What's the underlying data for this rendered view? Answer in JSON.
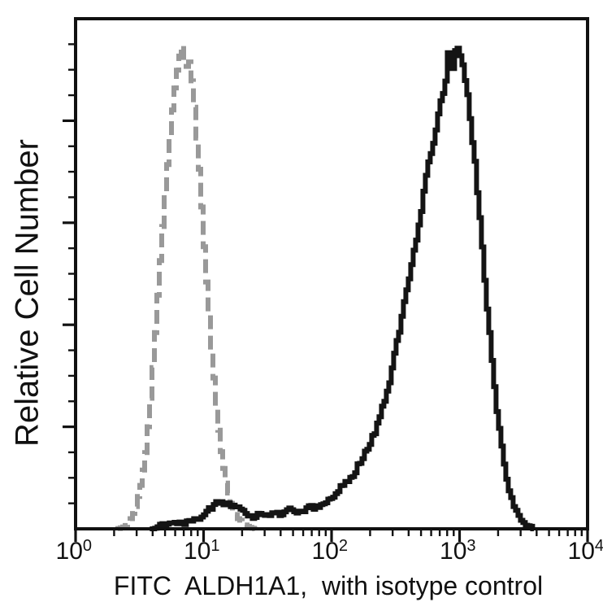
{
  "figure": {
    "background": "#ffffff",
    "axis_color": "#111111"
  },
  "chart_data": {
    "type": "line",
    "subtype": "flow-cytometry-overlay-histogram",
    "title": "",
    "xlabel": "FITC  ALDH1A1,  with isotype control",
    "ylabel": "Relative Cell Number",
    "grid": false,
    "legend": "none",
    "x_axis": {
      "scale": "log10",
      "range_log": [
        0,
        4
      ],
      "ticks": [
        {
          "base": "10",
          "exponent": "0",
          "log": 0
        },
        {
          "base": "10",
          "exponent": "1",
          "log": 1
        },
        {
          "base": "10",
          "exponent": "2",
          "log": 2
        },
        {
          "base": "10",
          "exponent": "3",
          "log": 3
        },
        {
          "base": "10",
          "exponent": "4",
          "log": 4
        }
      ],
      "minor_ticks": "log-decade-2-to-9"
    },
    "y_axis": {
      "scale": "linear",
      "tick_labels": "none",
      "minor_divisions": 20,
      "major_every": 4,
      "range_relative": [
        0,
        100
      ]
    },
    "series": [
      {
        "name": "isotype control",
        "line_style": "dashed",
        "color": "#999999",
        "peak_log_x": 0.84,
        "peak_relative_height": 95,
        "points": [
          [
            0.33,
            0
          ],
          [
            0.38,
            0.5
          ],
          [
            0.42,
            1.5
          ],
          [
            0.46,
            4
          ],
          [
            0.5,
            8
          ],
          [
            0.54,
            15
          ],
          [
            0.58,
            26
          ],
          [
            0.62,
            40
          ],
          [
            0.66,
            55
          ],
          [
            0.7,
            68
          ],
          [
            0.74,
            80
          ],
          [
            0.78,
            89
          ],
          [
            0.8,
            92
          ],
          [
            0.83,
            95
          ],
          [
            0.855,
            89
          ],
          [
            0.875,
            93
          ],
          [
            0.9,
            88
          ],
          [
            0.93,
            80
          ],
          [
            0.96,
            70
          ],
          [
            1.0,
            54
          ],
          [
            1.04,
            40
          ],
          [
            1.08,
            27
          ],
          [
            1.12,
            17
          ],
          [
            1.16,
            10
          ],
          [
            1.2,
            5.5
          ],
          [
            1.25,
            2.5
          ],
          [
            1.3,
            1
          ],
          [
            1.36,
            0.3
          ],
          [
            1.4,
            0
          ]
        ]
      },
      {
        "name": "ALDH1A1",
        "line_style": "solid",
        "color": "#141414",
        "peak_log_x": 2.97,
        "peak_relative_height": 95,
        "points": [
          [
            0.58,
            0
          ],
          [
            0.62,
            0.6
          ],
          [
            0.68,
            1.0
          ],
          [
            0.75,
            1.2
          ],
          [
            0.82,
            1.5
          ],
          [
            0.9,
            2.2
          ],
          [
            0.96,
            3.0
          ],
          [
            1.02,
            4.2
          ],
          [
            1.08,
            5.2
          ],
          [
            1.14,
            5.8
          ],
          [
            1.2,
            5.0
          ],
          [
            1.26,
            4.0
          ],
          [
            1.32,
            3.0
          ],
          [
            1.4,
            2.6
          ],
          [
            1.5,
            2.8
          ],
          [
            1.6,
            3.0
          ],
          [
            1.7,
            3.4
          ],
          [
            1.8,
            3.8
          ],
          [
            1.9,
            4.4
          ],
          [
            2.0,
            6.0
          ],
          [
            2.08,
            8.0
          ],
          [
            2.16,
            10.5
          ],
          [
            2.24,
            13.5
          ],
          [
            2.3,
            17
          ],
          [
            2.36,
            21
          ],
          [
            2.42,
            26
          ],
          [
            2.48,
            33
          ],
          [
            2.54,
            41
          ],
          [
            2.6,
            50
          ],
          [
            2.66,
            58
          ],
          [
            2.72,
            67
          ],
          [
            2.78,
            75
          ],
          [
            2.84,
            83
          ],
          [
            2.88,
            87
          ],
          [
            2.91,
            94
          ],
          [
            2.94,
            90
          ],
          [
            2.97,
            95
          ],
          [
            3.0,
            92
          ],
          [
            3.03,
            89
          ],
          [
            3.07,
            82
          ],
          [
            3.12,
            70
          ],
          [
            3.16,
            58
          ],
          [
            3.2,
            46
          ],
          [
            3.25,
            32
          ],
          [
            3.3,
            20
          ],
          [
            3.35,
            11
          ],
          [
            3.4,
            6
          ],
          [
            3.45,
            3
          ],
          [
            3.5,
            1.2
          ],
          [
            3.55,
            0.3
          ],
          [
            3.58,
            0
          ]
        ]
      }
    ]
  }
}
